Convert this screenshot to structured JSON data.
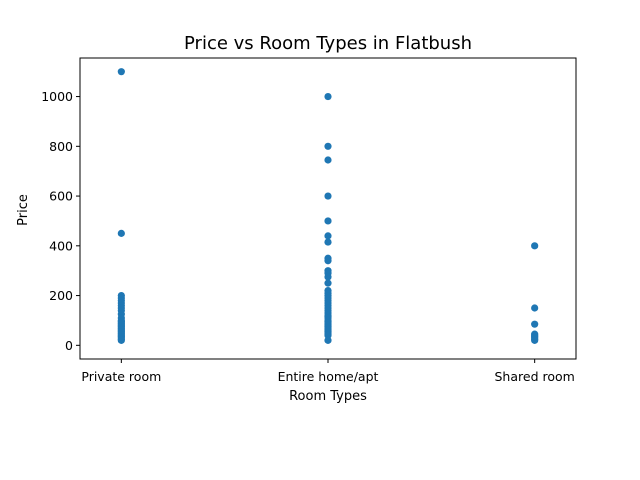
{
  "chart_data": {
    "type": "scatter",
    "title": "Price vs Room Types in Flatbush",
    "xlabel": "Room Types",
    "ylabel": "Price",
    "categories": [
      "Private room",
      "Entire home/apt",
      "Shared room"
    ],
    "yticks": [
      0,
      200,
      400,
      600,
      800,
      1000
    ],
    "ylim": [
      -55,
      1155
    ],
    "grid": false,
    "legend": "none",
    "color": "#1f77b4",
    "series": [
      {
        "category": "Private room",
        "values": [
          1100,
          450,
          200,
          190,
          180,
          170,
          160,
          150,
          140,
          125,
          110,
          100,
          95,
          90,
          85,
          80,
          75,
          70,
          65,
          60,
          55,
          50,
          45,
          40,
          35,
          30,
          25,
          20
        ]
      },
      {
        "category": "Entire home/apt",
        "values": [
          1000,
          800,
          745,
          600,
          500,
          440,
          415,
          350,
          340,
          300,
          290,
          275,
          250,
          220,
          210,
          200,
          190,
          180,
          170,
          160,
          150,
          140,
          130,
          120,
          115,
          110,
          100,
          95,
          90,
          85,
          80,
          75,
          70,
          65,
          60,
          55,
          50,
          45,
          40,
          20
        ]
      },
      {
        "category": "Shared room",
        "values": [
          400,
          150,
          85,
          45,
          40,
          35,
          30,
          25,
          20
        ]
      }
    ]
  }
}
